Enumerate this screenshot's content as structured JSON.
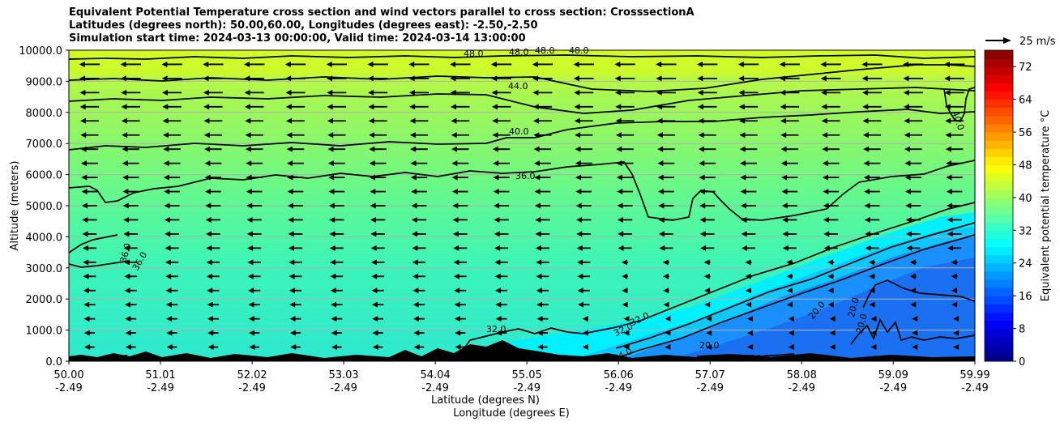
{
  "title": {
    "line1": "Equivalent Potential Temperature cross section and wind vectors parallel to cross section: CrosssectionA",
    "line2": "Latitudes (degrees north): 50.00,60.00, Longitudes (degrees east): -2.50,-2.50",
    "line3": "Simulation start time: 2024-03-13 00:00:00, Valid time: 2024-03-14 13:00:00"
  },
  "chart_data": {
    "type": "heatmap",
    "title": "Equivalent Potential Temperature cross section and wind vectors parallel to cross section: CrosssectionA",
    "ylabel": "Altitude (meters)",
    "xlabel_lat": "Latitude (degrees N)",
    "xlabel_lon": "Longitude (degrees E)",
    "xlim": [
      50.0,
      59.99
    ],
    "ylim": [
      0,
      10000
    ],
    "grid": true,
    "y_ticks": [
      "0.0",
      "1000.0",
      "2000.0",
      "3000.0",
      "4000.0",
      "5000.0",
      "6000.0",
      "7000.0",
      "8000.0",
      "9000.0",
      "10000.0"
    ],
    "y_tick_values": [
      0,
      1000,
      2000,
      3000,
      4000,
      5000,
      6000,
      7000,
      8000,
      9000,
      10000
    ],
    "x_ticks_lat": [
      "50.00",
      "51.01",
      "52.02",
      "53.03",
      "54.04",
      "55.05",
      "56.06",
      "57.07",
      "58.08",
      "59.09",
      "59.99"
    ],
    "x_tick_values": [
      50.0,
      51.01,
      52.02,
      53.03,
      54.04,
      55.05,
      56.06,
      57.07,
      58.08,
      59.09,
      59.99
    ],
    "x_ticks_lon": [
      "-2.49",
      "-2.49",
      "-2.49",
      "-2.49",
      "-2.49",
      "-2.49",
      "-2.49",
      "-2.49",
      "-2.49",
      "-2.49",
      "-2.49"
    ],
    "colorbar": {
      "label": "Equivalent potential temperature $^\\circ$C",
      "label_display": "Equivalent potential temperature °C",
      "min": 0,
      "max": 76,
      "ticks": [
        "0",
        "8",
        "16",
        "24",
        "32",
        "40",
        "48",
        "56",
        "64",
        "72"
      ],
      "tick_values": [
        0,
        8,
        16,
        24,
        32,
        40,
        48,
        56,
        64,
        72
      ],
      "colormap": "jet"
    },
    "quiver_key": {
      "label": "25 m/s",
      "speed": 25
    },
    "contour_labels": [
      "48.0",
      "48.0",
      "48.0",
      "48.0",
      "44.0",
      "40.0",
      "40.0",
      "36.0",
      "36.0",
      "36.0",
      "32.0",
      "32.0",
      "32.0",
      "32.0",
      "24.0",
      "20.0",
      "20.0",
      "20.0",
      "20.0",
      "24.0"
    ],
    "wind_direction": "toward lower latitude (leftward)"
  }
}
